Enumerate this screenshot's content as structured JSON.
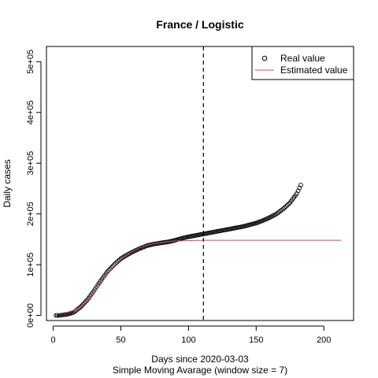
{
  "chart_data": {
    "type": "scatter",
    "title": "France / Logistic",
    "xlabel": "Days since 2020-03-03",
    "subtitle": "Simple Moving Avarage (window size = 7)",
    "ylabel": "Daily cases",
    "xlim": [
      -5,
      222
    ],
    "ylim": [
      -10000,
      530000
    ],
    "x_ticks": [
      0,
      50,
      100,
      150,
      200
    ],
    "x_tick_labels": [
      "0",
      "50",
      "100",
      "150",
      "200"
    ],
    "y_ticks": [
      0,
      100000,
      200000,
      300000,
      400000,
      500000
    ],
    "y_tick_labels": [
      "0e+00",
      "1e+05",
      "2e+05",
      "3e+05",
      "4e+05",
      "5e+05"
    ],
    "vline_x": 111,
    "legend": {
      "position": "top-right",
      "entries": [
        {
          "label": "Real value",
          "marker": "circle"
        },
        {
          "label": "Estimated value",
          "marker": "line"
        }
      ]
    },
    "colors": {
      "real": "#000000",
      "estimated": "#c0506e"
    },
    "real_value_keypoints": {
      "x": [
        2,
        5,
        10,
        15,
        20,
        25,
        30,
        35,
        40,
        45,
        50,
        55,
        60,
        65,
        70,
        75,
        80,
        85,
        90,
        95,
        100,
        110,
        120,
        130,
        140,
        150,
        155,
        160,
        165,
        170,
        175,
        180,
        183
      ],
      "y": [
        0,
        500,
        2000,
        6000,
        16000,
        30000,
        48000,
        68000,
        86000,
        100000,
        112000,
        120000,
        127000,
        133000,
        138000,
        141000,
        143000,
        145000,
        148000,
        152000,
        155000,
        160000,
        165000,
        170000,
        175000,
        182000,
        187000,
        193000,
        200000,
        210000,
        222000,
        240000,
        257000
      ]
    },
    "estimated_value_keypoints": {
      "x": [
        2,
        10,
        15,
        20,
        25,
        30,
        35,
        40,
        45,
        50,
        55,
        60,
        65,
        70,
        75,
        80,
        85,
        90,
        95,
        100,
        110,
        130,
        150,
        180,
        213
      ],
      "y": [
        3000,
        6000,
        10000,
        17000,
        28000,
        43000,
        61000,
        80000,
        97000,
        111000,
        121000,
        129000,
        135000,
        139000,
        142000,
        144000,
        145500,
        146500,
        147000,
        147500,
        148000,
        148000,
        148000,
        148000,
        148000
      ]
    }
  }
}
